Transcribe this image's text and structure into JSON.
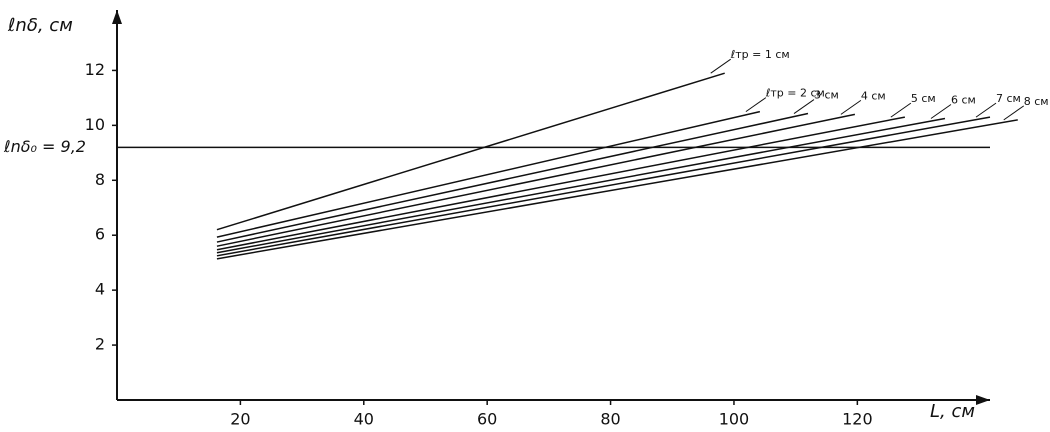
{
  "chart_data": {
    "type": "line",
    "x_label": "L, см",
    "y_label": "ℓnδ, см",
    "xlim": [
      0,
      141.5
    ],
    "ylim": [
      0,
      14.2
    ],
    "xticks": [
      20,
      40,
      60,
      80,
      100,
      120
    ],
    "yticks": [
      2,
      4,
      6,
      8,
      10,
      12
    ],
    "color": "#111111",
    "reference_line": {
      "value": 9.2,
      "label": "ℓnδ₀ = 9,2"
    },
    "series": [
      {
        "name": "ℓтр = 1 см",
        "x": [
          16.2,
          98.5
        ],
        "values": [
          6.2,
          11.9
        ]
      },
      {
        "name": "ℓтр = 2 см",
        "x": [
          16.2,
          104.2
        ],
        "values": [
          5.93,
          10.5
        ]
      },
      {
        "name": "3 см",
        "x": [
          16.2,
          112
        ],
        "values": [
          5.75,
          10.43
        ]
      },
      {
        "name": "4 см",
        "x": [
          16.2,
          119.6
        ],
        "values": [
          5.6,
          10.4
        ]
      },
      {
        "name": "5 см",
        "x": [
          16.2,
          127.7
        ],
        "values": [
          5.47,
          10.3
        ]
      },
      {
        "name": "6 см",
        "x": [
          16.2,
          134.2
        ],
        "values": [
          5.36,
          10.25
        ]
      },
      {
        "name": "7 см",
        "x": [
          16.2,
          141.5
        ],
        "values": [
          5.25,
          10.3
        ]
      },
      {
        "name": "8 см",
        "x": [
          16.2,
          146
        ],
        "values": [
          5.14,
          10.2
        ]
      }
    ]
  }
}
